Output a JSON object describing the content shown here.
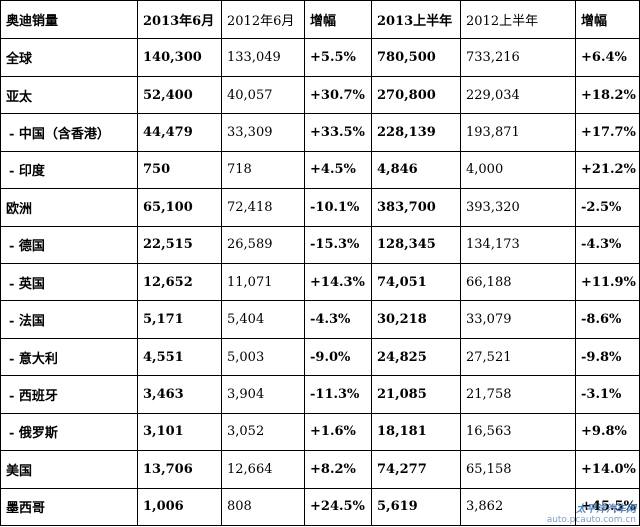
{
  "table": {
    "headers": [
      "奥迪销量",
      "2013年6月",
      "2012年6月",
      "增幅",
      "2013上半年",
      "2012上半年",
      "增幅"
    ],
    "rows": [
      {
        "region": "全球",
        "sub": false,
        "jun2013": "140,300",
        "jun2012": "133,049",
        "jun_growth": "+5.5%",
        "h1_2013": "780,500",
        "h1_2012": "733,216",
        "h1_growth": "+6.4%"
      },
      {
        "region": "亚太",
        "sub": false,
        "jun2013": "52,400",
        "jun2012": "40,057",
        "jun_growth": "+30.7%",
        "h1_2013": "270,800",
        "h1_2012": "229,034",
        "h1_growth": "+18.2%"
      },
      {
        "region": "- 中国（含香港）",
        "sub": true,
        "jun2013": "44,479",
        "jun2012": "33,309",
        "jun_growth": "+33.5%",
        "h1_2013": "228,139",
        "h1_2012": "193,871",
        "h1_growth": "+17.7%"
      },
      {
        "region": "- 印度",
        "sub": true,
        "jun2013": "750",
        "jun2012": "718",
        "jun_growth": "+4.5%",
        "h1_2013": "4,846",
        "h1_2012": "4,000",
        "h1_growth": "+21.2%"
      },
      {
        "region": "欧洲",
        "sub": false,
        "jun2013": "65,100",
        "jun2012": "72,418",
        "jun_growth": "-10.1%",
        "h1_2013": "383,700",
        "h1_2012": "393,320",
        "h1_growth": "-2.5%"
      },
      {
        "region": "- 德国",
        "sub": true,
        "jun2013": "22,515",
        "jun2012": "26,589",
        "jun_growth": "-15.3%",
        "h1_2013": "128,345",
        "h1_2012": "134,173",
        "h1_growth": "-4.3%"
      },
      {
        "region": "- 英国",
        "sub": true,
        "jun2013": "12,652",
        "jun2012": "11,071",
        "jun_growth": "+14.3%",
        "h1_2013": "74,051",
        "h1_2012": "66,188",
        "h1_growth": "+11.9%"
      },
      {
        "region": "- 法国",
        "sub": true,
        "jun2013": "5,171",
        "jun2012": "5,404",
        "jun_growth": "-4.3%",
        "h1_2013": "30,218",
        "h1_2012": "33,079",
        "h1_growth": "-8.6%"
      },
      {
        "region": "- 意大利",
        "sub": true,
        "jun2013": "4,551",
        "jun2012": "5,003",
        "jun_growth": "-9.0%",
        "h1_2013": "24,825",
        "h1_2012": "27,521",
        "h1_growth": "-9.8%"
      },
      {
        "region": "- 西班牙",
        "sub": true,
        "jun2013": "3,463",
        "jun2012": "3,904",
        "jun_growth": "-11.3%",
        "h1_2013": "21,085",
        "h1_2012": "21,758",
        "h1_growth": "-3.1%"
      },
      {
        "region": "- 俄罗斯",
        "sub": true,
        "jun2013": "3,101",
        "jun2012": "3,052",
        "jun_growth": "+1.6%",
        "h1_2013": "18,181",
        "h1_2012": "16,563",
        "h1_growth": "+9.8%"
      },
      {
        "region": "美国",
        "sub": false,
        "jun2013": "13,706",
        "jun2012": "12,664",
        "jun_growth": "+8.2%",
        "h1_2013": "74,277",
        "h1_2012": "65,158",
        "h1_growth": "+14.0%"
      },
      {
        "region": "墨西哥",
        "sub": false,
        "jun2013": "1,006",
        "jun2012": "808",
        "jun_growth": "+24.5%",
        "h1_2013": "5,619",
        "h1_2012": "3,862",
        "h1_growth": "+45.5%"
      }
    ]
  },
  "watermark": {
    "brand": "太平洋汽车网",
    "url": "auto.pcauto.com.cn"
  }
}
